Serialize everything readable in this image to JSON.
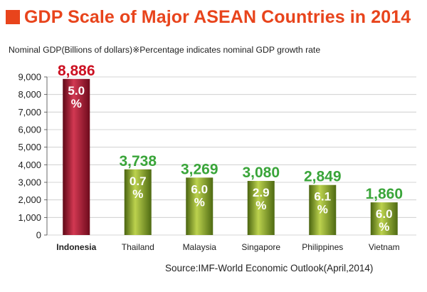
{
  "title": "GDP Scale of Major ASEAN Countries in 2014",
  "subtitle": "Nominal GDP(Billions of dollars)※Percentage indicates nominal GDP growth rate",
  "source": "Source:IMF-World Economic Outlook(April,2014)",
  "colors": {
    "title": "#e8441c",
    "highlight_label": "#cc1122",
    "value_label": "#3aa53a",
    "highlight_bar": "#a8162e",
    "bar": "#7b9a1e"
  },
  "chart_data": {
    "type": "bar",
    "title": "GDP Scale of Major ASEAN Countries in 2014",
    "ylim": [
      0,
      9000
    ],
    "yticks": [
      0,
      1000,
      2000,
      3000,
      4000,
      5000,
      6000,
      7000,
      8000,
      9000
    ],
    "ytick_labels": [
      "0",
      "1,000",
      "2,000",
      "3,000",
      "4,000",
      "5,000",
      "6,000",
      "7,000",
      "8,000",
      "9,000"
    ],
    "categories": [
      "Indonesia",
      "Thailand",
      "Malaysia",
      "Singapore",
      "Philippines",
      "Vietnam"
    ],
    "values": [
      8886,
      3738,
      3269,
      3080,
      2849,
      1860
    ],
    "value_labels": [
      "8,886",
      "3,738",
      "3,269",
      "3,080",
      "2,849",
      "1,860"
    ],
    "growth_rate_labels": [
      "5.0",
      "0.7",
      "6.0",
      "2.9",
      "6.1",
      "6.0"
    ],
    "percent_symbol": "%",
    "highlighted_category": "Indonesia",
    "grid": true
  }
}
